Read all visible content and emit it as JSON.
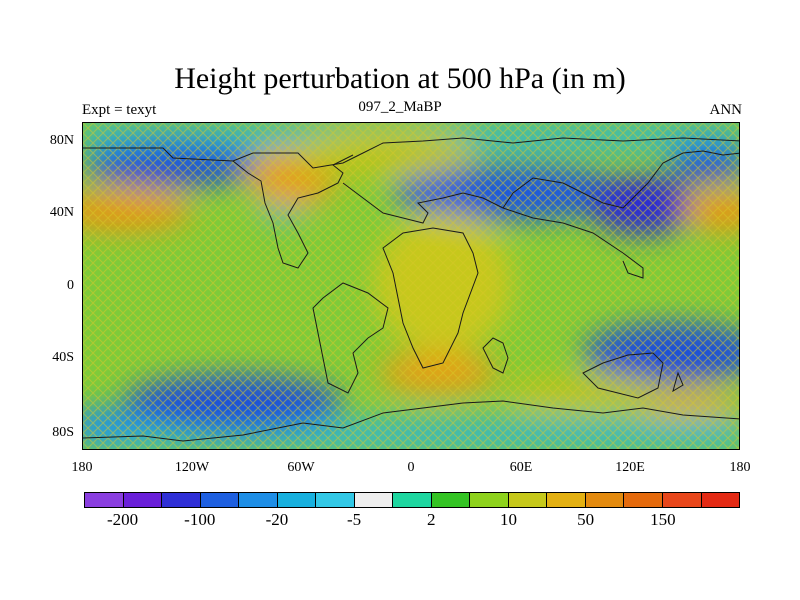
{
  "title": "Height perturbation at 500 hPa (in m)",
  "left_label": "Expt = texyt",
  "center_label": "097_2_MaBP",
  "right_label": "ANN",
  "lat_labels": [
    "80N",
    "40N",
    "0",
    "40S",
    "80S"
  ],
  "lon_labels": [
    "180",
    "120W",
    "60W",
    "0",
    "60E",
    "120E",
    "180"
  ],
  "colorbar": {
    "colors": [
      "#8a3ee0",
      "#6a1fd9",
      "#2f2fd6",
      "#1e5fe0",
      "#1e8ee6",
      "#17b0de",
      "#32c8e6",
      "#efefef",
      "#1ed6a0",
      "#34c424",
      "#8ed21c",
      "#c6c81a",
      "#e3b012",
      "#e38a0e",
      "#e56a0c",
      "#e8461a",
      "#e42a14"
    ],
    "labels": [
      "-200",
      "-100",
      "-20",
      "-5",
      "2",
      "10",
      "50",
      "150"
    ]
  }
}
